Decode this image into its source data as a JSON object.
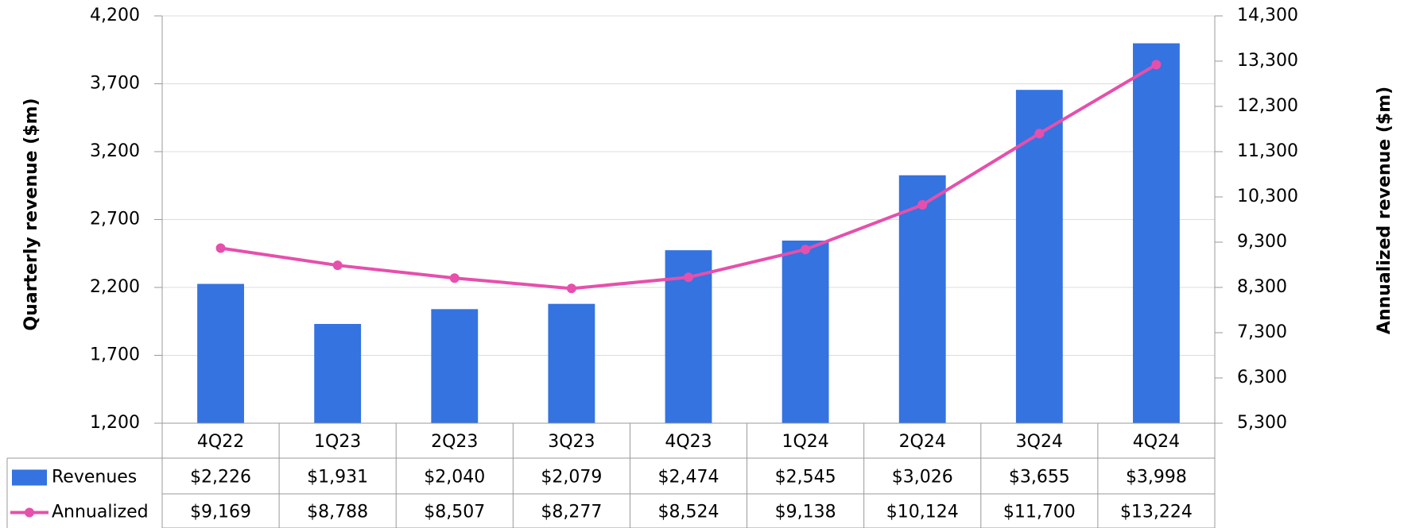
{
  "chart_data": {
    "type": "bar",
    "categories": [
      "4Q22",
      "1Q23",
      "2Q23",
      "3Q23",
      "4Q23",
      "1Q24",
      "2Q24",
      "3Q24",
      "4Q24"
    ],
    "y_label": "Quarterly revenue ($m)",
    "y2_label": "Annualized revenue ($m)",
    "ylim": [
      1200,
      4200
    ],
    "yticks": [
      {
        "value": 1200,
        "label": "1,200"
      },
      {
        "value": 1700,
        "label": "1,700"
      },
      {
        "value": 2200,
        "label": "2,200"
      },
      {
        "value": 2700,
        "label": "2,700"
      },
      {
        "value": 3200,
        "label": "3,200"
      },
      {
        "value": 3700,
        "label": "3,700"
      },
      {
        "value": 4200,
        "label": "4,200"
      }
    ],
    "y2lim": [
      5300,
      14300
    ],
    "y2ticks": [
      {
        "value": 5300,
        "label": "5,300"
      },
      {
        "value": 6300,
        "label": "6,300"
      },
      {
        "value": 7300,
        "label": "7,300"
      },
      {
        "value": 8300,
        "label": "8,300"
      },
      {
        "value": 9300,
        "label": "9,300"
      },
      {
        "value": 10300,
        "label": "10,300"
      },
      {
        "value": 11300,
        "label": "11,300"
      },
      {
        "value": 12300,
        "label": "12,300"
      },
      {
        "value": 13300,
        "label": "13,300"
      },
      {
        "value": 14300,
        "label": "14,300"
      }
    ],
    "grid": true,
    "series": [
      {
        "name": "Revenues",
        "type": "bar",
        "color": "#3473e0",
        "values": [
          2226,
          1931,
          2040,
          2079,
          2474,
          2545,
          3026,
          3655,
          3998
        ],
        "value_labels": [
          "$2,226",
          "$1,931",
          "$2,040",
          "$2,079",
          "$2,474",
          "$2,545",
          "$3,026",
          "$3,655",
          "$3,998"
        ]
      },
      {
        "name": "Annualized",
        "type": "line",
        "axis": "y2",
        "color": "#e64fac",
        "values": [
          9169,
          8788,
          8507,
          8277,
          8524,
          9138,
          10124,
          11700,
          13224
        ],
        "value_labels": [
          "$9,169",
          "$8,788",
          "$8,507",
          "$8,277",
          "$8,524",
          "$9,138",
          "$10,124",
          "$11,700",
          "$13,224"
        ]
      }
    ]
  }
}
